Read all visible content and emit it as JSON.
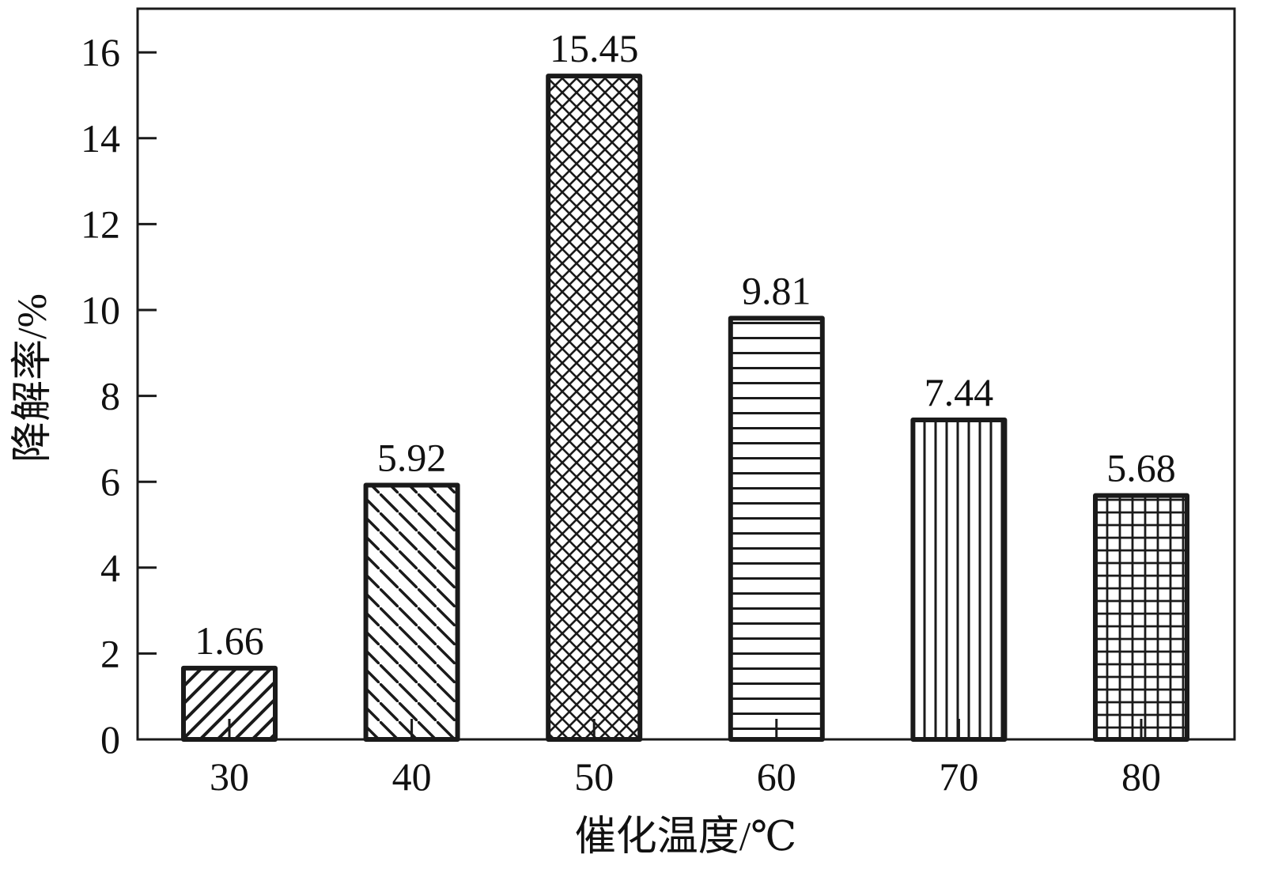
{
  "chart_data": {
    "type": "bar",
    "title": "",
    "xlabel": "催化温度/℃",
    "ylabel": "降解率/%",
    "categories": [
      "30",
      "40",
      "50",
      "60",
      "70",
      "80"
    ],
    "values": [
      1.66,
      5.92,
      15.45,
      9.81,
      7.44,
      5.68
    ],
    "data_labels": [
      "1.66",
      "5.92",
      "15.45",
      "9.81",
      "7.44",
      "5.68"
    ],
    "ylim": [
      0,
      17
    ],
    "yticks": [
      0,
      2,
      4,
      6,
      8,
      10,
      12,
      14,
      16
    ],
    "ytick_labels": [
      "0",
      "2",
      "4",
      "6",
      "8",
      "10",
      "12",
      "14",
      "16"
    ],
    "grid": false,
    "legend": "none",
    "bar_patterns": [
      "diagonal-up",
      "diagonal-down",
      "crosshatch",
      "horizontal",
      "vertical",
      "grid"
    ],
    "colors": {
      "stroke": "#1a1a1a",
      "background": "#ffffff"
    }
  }
}
